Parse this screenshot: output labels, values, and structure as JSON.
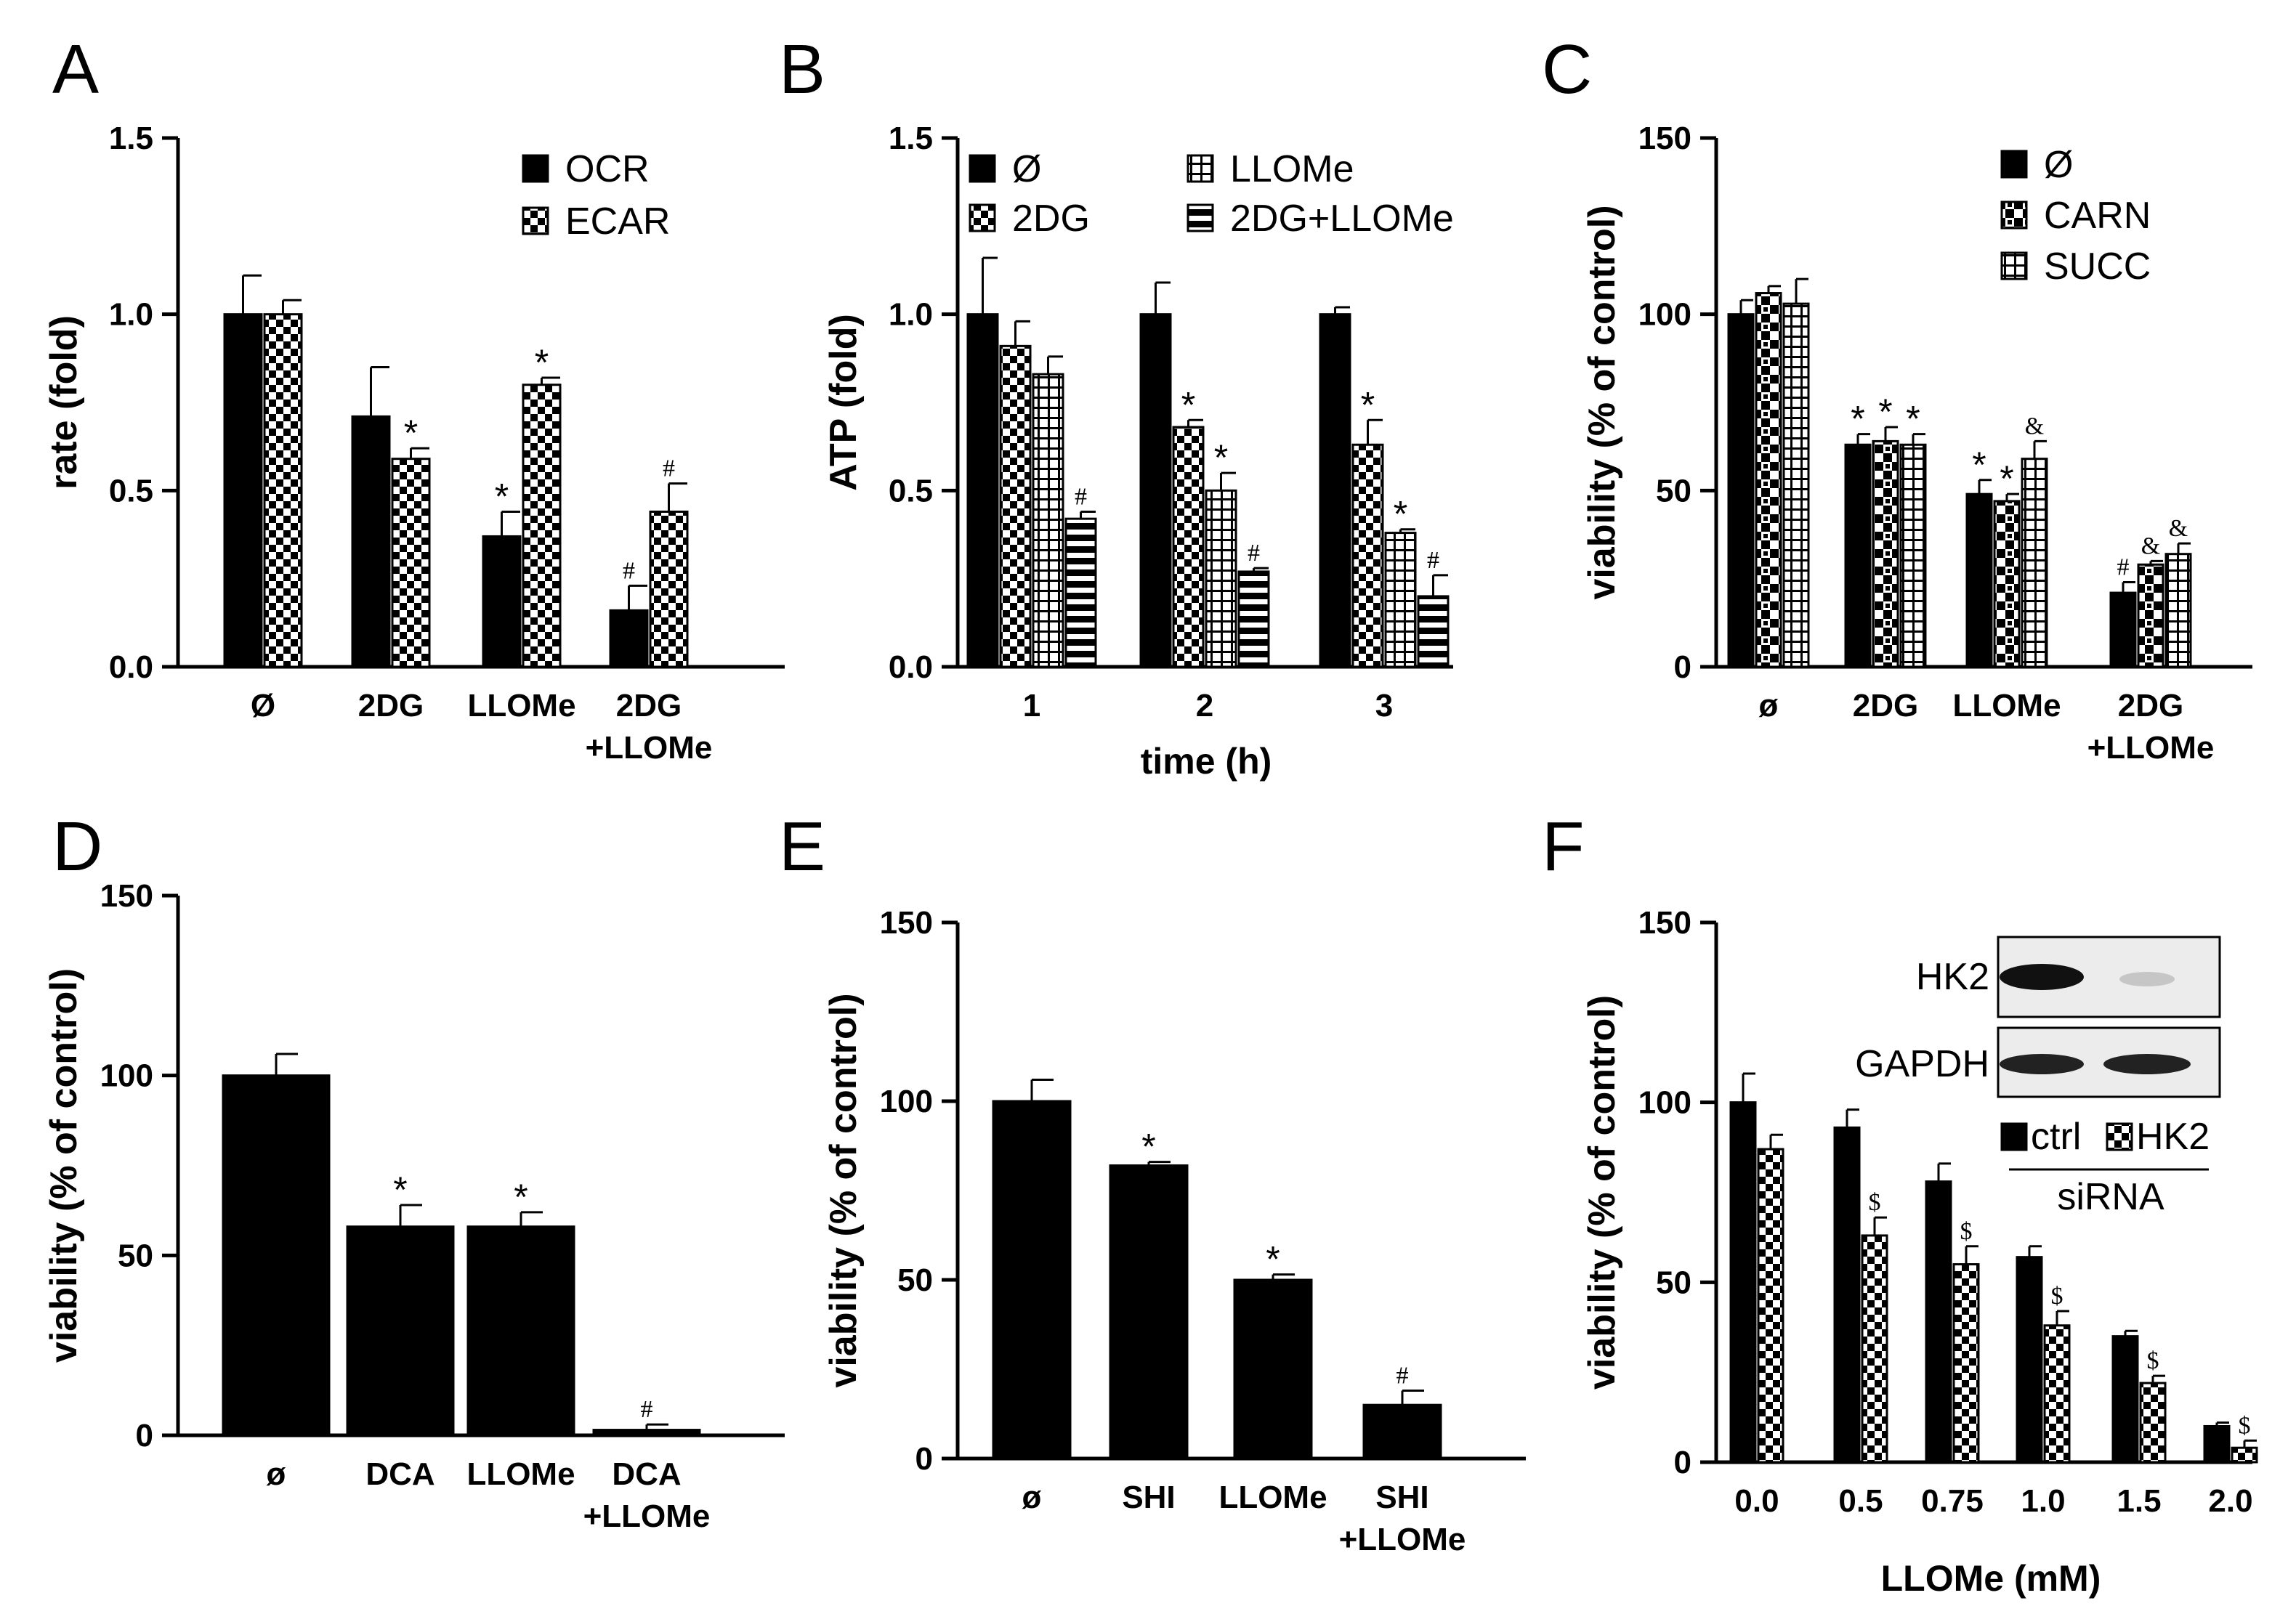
{
  "patterns": {
    "solid": "#000000",
    "checker": "checker",
    "grid": "grid",
    "stripe": "stripe",
    "carn": "carn"
  },
  "chart_data": [
    {
      "panel": "A",
      "type": "bar",
      "ylabel": "rate (fold)",
      "xlabel": "",
      "ylim": [
        0,
        1.5
      ],
      "yticks": [
        "0.0",
        "0.5",
        "1.0",
        "1.5"
      ],
      "ytick_values": [
        0,
        0.5,
        1.0,
        1.5
      ],
      "categories": [
        [
          "Ø"
        ],
        [
          "2DG"
        ],
        [
          "LLOMe"
        ],
        [
          "2DG",
          "+LLOMe"
        ]
      ],
      "series": [
        {
          "name": "OCR",
          "pattern": "solid",
          "values": [
            1.0,
            0.71,
            0.37,
            0.16
          ],
          "errors": [
            0.11,
            0.14,
            0.07,
            0.07
          ],
          "marks": [
            "",
            "",
            "*",
            "#"
          ]
        },
        {
          "name": "ECAR",
          "pattern": "checker",
          "values": [
            1.0,
            0.59,
            0.8,
            0.44
          ],
          "errors": [
            0.04,
            0.03,
            0.02,
            0.08
          ],
          "marks": [
            "",
            "*",
            "*",
            "#"
          ]
        }
      ],
      "legend": "top-right"
    },
    {
      "panel": "B",
      "type": "bar",
      "ylabel": "ATP (fold)",
      "xlabel": "time (h)",
      "ylim": [
        0,
        1.5
      ],
      "yticks": [
        "0.0",
        "0.5",
        "1.0",
        "1.5"
      ],
      "ytick_values": [
        0,
        0.5,
        1.0,
        1.5
      ],
      "categories": [
        [
          "1"
        ],
        [
          "2"
        ],
        [
          "3"
        ]
      ],
      "series": [
        {
          "name": "Ø",
          "pattern": "solid",
          "values": [
            1.0,
            1.0,
            1.0
          ],
          "errors": [
            0.16,
            0.09,
            0.02
          ],
          "marks": [
            "",
            "",
            ""
          ]
        },
        {
          "name": "2DG",
          "pattern": "checker",
          "values": [
            0.91,
            0.68,
            0.63
          ],
          "errors": [
            0.07,
            0.02,
            0.07
          ],
          "marks": [
            "",
            "*",
            "*"
          ]
        },
        {
          "name": "LLOMe",
          "pattern": "grid",
          "values": [
            0.83,
            0.5,
            0.38
          ],
          "errors": [
            0.05,
            0.05,
            0.01
          ],
          "marks": [
            "",
            "*",
            "*"
          ]
        },
        {
          "name": "2DG+LLOMe",
          "pattern": "stripe",
          "values": [
            0.42,
            0.27,
            0.2
          ],
          "errors": [
            0.02,
            0.01,
            0.06
          ],
          "marks": [
            "#",
            "#",
            "#"
          ]
        }
      ],
      "legend": "top"
    },
    {
      "panel": "C",
      "type": "bar",
      "ylabel": "viability (% of control)",
      "xlabel": "",
      "ylim": [
        0,
        150
      ],
      "yticks": [
        "0",
        "50",
        "100",
        "150"
      ],
      "ytick_values": [
        0,
        50,
        100,
        150
      ],
      "categories": [
        [
          "ø"
        ],
        [
          "2DG"
        ],
        [
          "LLOMe"
        ],
        [
          "2DG",
          "+LLOMe"
        ]
      ],
      "series": [
        {
          "name": "Ø",
          "pattern": "solid",
          "values": [
            100,
            63,
            49,
            21
          ],
          "errors": [
            4,
            3,
            4,
            3
          ],
          "marks": [
            "",
            "*",
            "*",
            "#"
          ]
        },
        {
          "name": "CARN",
          "pattern": "carn",
          "values": [
            106,
            64,
            47,
            29
          ],
          "errors": [
            2,
            4,
            2,
            1
          ],
          "marks": [
            "",
            "*",
            "*",
            "&"
          ]
        },
        {
          "name": "SUCC",
          "pattern": "grid",
          "values": [
            103,
            63,
            59,
            32
          ],
          "errors": [
            7,
            3,
            5,
            3
          ],
          "marks": [
            "",
            "*",
            "&",
            "&"
          ]
        }
      ],
      "legend": "top-right"
    },
    {
      "panel": "D",
      "type": "bar",
      "ylabel": "viability (% of control)",
      "xlabel": "",
      "ylim": [
        0,
        150
      ],
      "yticks": [
        "0",
        "50",
        "100",
        "150"
      ],
      "ytick_values": [
        0,
        50,
        100,
        150
      ],
      "categories": [
        [
          "ø"
        ],
        [
          "DCA"
        ],
        [
          "LLOMe"
        ],
        [
          "DCA",
          "+LLOMe"
        ]
      ],
      "series": [
        {
          "name": "viability",
          "pattern": "solid",
          "values": [
            100,
            58,
            58,
            1.5
          ],
          "errors": [
            6,
            6,
            4,
            1.5
          ],
          "marks": [
            "",
            "*",
            "*",
            "#"
          ]
        }
      ]
    },
    {
      "panel": "E",
      "type": "bar",
      "ylabel": "viability (% of control)",
      "xlabel": "",
      "ylim": [
        0,
        150
      ],
      "yticks": [
        "0",
        "50",
        "100",
        "150"
      ],
      "ytick_values": [
        0,
        50,
        100,
        150
      ],
      "categories": [
        [
          "ø"
        ],
        [
          "SHI"
        ],
        [
          "LLOMe"
        ],
        [
          "SHI",
          "+LLOMe"
        ]
      ],
      "series": [
        {
          "name": "viability",
          "pattern": "solid",
          "values": [
            100,
            82,
            50,
            15
          ],
          "errors": [
            6,
            1,
            1.5,
            4
          ],
          "marks": [
            "",
            "*",
            "*",
            "#"
          ]
        }
      ]
    },
    {
      "panel": "F",
      "type": "bar",
      "ylabel": "viability (% of control)",
      "xlabel": "LLOMe (mM)",
      "ylim": [
        0,
        150
      ],
      "yticks": [
        "0",
        "50",
        "100",
        "150"
      ],
      "ytick_values": [
        0,
        50,
        100,
        150
      ],
      "categories": [
        [
          "0.0"
        ],
        [
          "0.5"
        ],
        [
          "0.75"
        ],
        [
          "1.0"
        ],
        [
          "1.5"
        ],
        [
          "2.0"
        ]
      ],
      "series": [
        {
          "name": "ctrl",
          "pattern": "solid",
          "values": [
            100,
            93,
            78,
            57,
            35,
            10
          ],
          "errors": [
            8,
            5,
            5,
            3,
            1.5,
            1
          ],
          "marks": [
            "",
            "",
            "",
            "",
            "",
            ""
          ]
        },
        {
          "name": "HK2",
          "pattern": "checker",
          "values": [
            87,
            63,
            55,
            38,
            22,
            4
          ],
          "errors": [
            4,
            5,
            5,
            4,
            2,
            2
          ],
          "marks": [
            "",
            "$",
            "$",
            "$",
            "$",
            "$"
          ]
        }
      ],
      "legend": "inset",
      "legend_caption": "siRNA",
      "blot": {
        "rows": [
          "HK2",
          "GAPDH"
        ]
      }
    }
  ],
  "panel_labels": [
    "A",
    "B",
    "C",
    "D",
    "E",
    "F"
  ]
}
